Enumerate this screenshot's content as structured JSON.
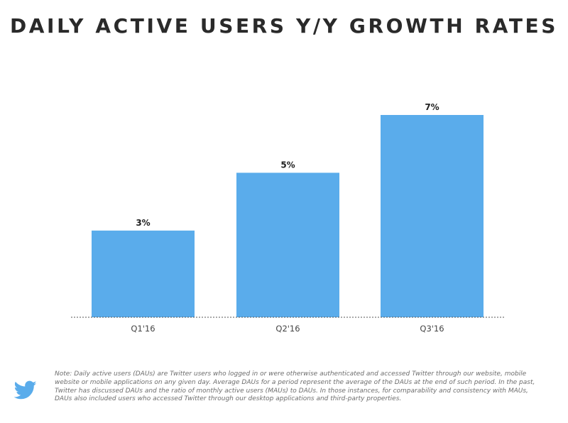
{
  "colors": {
    "bar": "#5aaceb",
    "baseline": "#555555",
    "title": "#2a2a2a",
    "note": "#6d6d6d",
    "logo": "#5aaceb"
  },
  "logo": {
    "icon": "twitter-bird-icon"
  },
  "chart_data": {
    "type": "bar",
    "title": "DAILY ACTIVE USERS Y/Y GROWTH RATES",
    "categories": [
      "Q1'16",
      "Q2'16",
      "Q3'16"
    ],
    "values": [
      3,
      5,
      7
    ],
    "value_labels": [
      "3%",
      "5%",
      "7%"
    ],
    "xlabel": "",
    "ylabel": "",
    "ylim": [
      0,
      7
    ],
    "grid": false,
    "legend": "none"
  },
  "footnote": "Note: Daily active users (DAUs) are Twitter users who logged in or were otherwise authenticated and accessed Twitter through our website, mobile website or mobile applications on any given day. Average DAUs for a period represent the average of the DAUs at the end of such period. In the past, Twitter has discussed DAUs and the ratio of monthly active users (MAUs) to DAUs. In those instances, for comparability and consistency with MAUs, DAUs also included users who accessed Twitter through our desktop applications and third-party properties."
}
